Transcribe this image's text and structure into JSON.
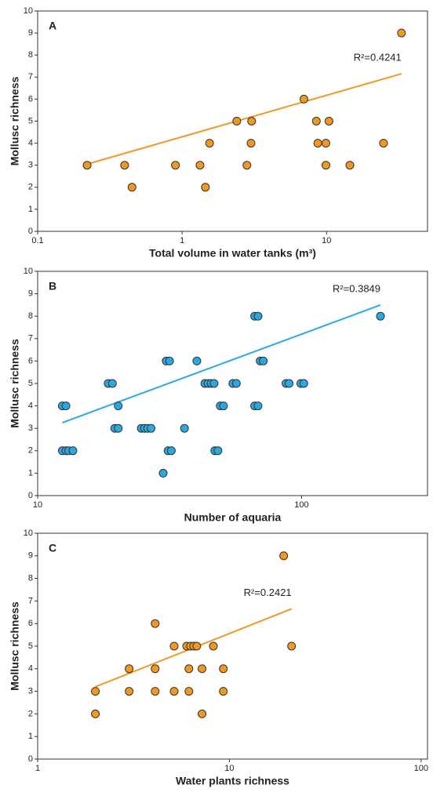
{
  "chart_data": [
    {
      "type": "scatter",
      "panel_label": "A",
      "x_label": "Total volume in water tanks (m³)",
      "y_label": "Mollusc richness",
      "log_x": true,
      "color": "#f0981f",
      "xlim": [
        0.1,
        50
      ],
      "ylim": [
        0,
        10
      ],
      "xticks": [
        0.1,
        1,
        10
      ],
      "yticks": [
        0,
        1,
        2,
        3,
        4,
        5,
        6,
        7,
        8,
        9,
        10
      ],
      "x": [
        0.22,
        0.4,
        0.45,
        0.9,
        1.33,
        1.45,
        1.55,
        2.39,
        2.81,
        3.03,
        3.0,
        6.97,
        8.5,
        8.7,
        9.9,
        9.9,
        10.4,
        14.5,
        24.8,
        33
      ],
      "values": [
        3,
        3,
        2,
        3,
        3,
        2,
        4,
        5,
        3,
        5,
        4,
        6,
        5,
        4,
        4,
        3,
        5,
        3,
        4,
        9
      ],
      "trendline": {
        "color": "#f0981f",
        "x": [
          0.22,
          33
        ],
        "values": [
          3.05,
          7.15
        ]
      },
      "annotation": "R²=0.4241"
    },
    {
      "type": "scatter",
      "panel_label": "B",
      "x_label": "Number of aquaria",
      "y_label": "Mollusc richness",
      "log_x": true,
      "color": "#29a9e0",
      "xlim": [
        10,
        300
      ],
      "ylim": [
        0,
        10
      ],
      "xticks": [
        10,
        100
      ],
      "yticks": [
        0,
        1,
        2,
        3,
        4,
        5,
        6,
        7,
        8,
        9,
        10
      ],
      "x": [
        12.4,
        12.8,
        13.1,
        13.6,
        12.4,
        12.8,
        18.5,
        19.2,
        19.6,
        20.2,
        20.2,
        24.7,
        25.4,
        26.1,
        26.9,
        31.2,
        32.1,
        46.9,
        48.2,
        29.9,
        30.7,
        31.6,
        40.1,
        36.0,
        43.0,
        44.2,
        45.4,
        46.6,
        49.2,
        50.6,
        54.9,
        56.6,
        66.4,
        68.4,
        66.4,
        68.4,
        69.7,
        71.6,
        87.3,
        89.7,
        99.3,
        102,
        199
      ],
      "values": [
        2,
        2,
        2,
        2,
        4,
        4,
        5,
        5,
        3,
        3,
        4,
        3,
        3,
        3,
        3,
        2,
        2,
        2,
        2,
        1,
        6,
        6,
        6,
        3,
        5,
        5,
        5,
        5,
        4,
        4,
        5,
        5,
        4,
        4,
        8,
        8,
        6,
        6,
        5,
        5,
        5,
        5,
        8
      ],
      "trendline": {
        "color": "#29a9e0",
        "x": [
          12.4,
          199
        ],
        "values": [
          3.25,
          8.5
        ]
      },
      "annotation": "R²=0.3849"
    },
    {
      "type": "scatter",
      "panel_label": "C",
      "x_label": "Water plants richness",
      "y_label": "Mollusc richness",
      "log_x": true,
      "color": "#f0981f",
      "xlim": [
        1,
        108
      ],
      "ylim": [
        0,
        10
      ],
      "xticks": [
        1,
        10,
        100
      ],
      "yticks": [
        0,
        1,
        2,
        3,
        4,
        5,
        6,
        7,
        8,
        9,
        10
      ],
      "x": [
        2.0,
        2.0,
        3.0,
        3.0,
        4.1,
        4.1,
        4.1,
        5.15,
        5.15,
        6.15,
        6.15,
        5.99,
        6.27,
        6.52,
        6.76,
        7.2,
        7.2,
        8.25,
        9.3,
        9.3,
        19.2,
        21.1
      ],
      "values": [
        2,
        3,
        3,
        4,
        4,
        3,
        6,
        5,
        3,
        4,
        3,
        5,
        5,
        5,
        5,
        2,
        4,
        5,
        4,
        3,
        9,
        5
      ],
      "trendline": {
        "color": "#f0981f",
        "x": [
          2.0,
          21.1
        ],
        "values": [
          3.2,
          6.65
        ]
      },
      "annotation": "R²=0.2421"
    }
  ]
}
